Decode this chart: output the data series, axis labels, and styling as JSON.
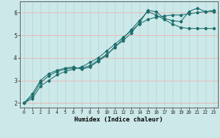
{
  "xlabel": "Humidex (Indice chaleur)",
  "bg_color": "#cce8e8",
  "line_color": "#1e6e6e",
  "grid_h_color": "#e8b8b8",
  "grid_v_color": "#b0d4d4",
  "xlim": [
    -0.5,
    23.5
  ],
  "ylim": [
    1.8,
    6.5
  ],
  "xticks": [
    0,
    1,
    2,
    3,
    4,
    5,
    6,
    7,
    8,
    9,
    10,
    11,
    12,
    13,
    14,
    15,
    16,
    17,
    18,
    19,
    20,
    21,
    22,
    23
  ],
  "yticks": [
    2,
    3,
    4,
    5,
    6
  ],
  "line1_x": [
    0,
    1,
    2,
    3,
    4,
    5,
    6,
    7,
    8,
    9,
    10,
    11,
    12,
    13,
    14,
    15,
    16,
    17,
    18,
    19,
    20,
    21,
    22,
    23
  ],
  "line1_y": [
    2.0,
    2.4,
    3.0,
    3.3,
    3.45,
    3.55,
    3.6,
    3.5,
    3.6,
    3.85,
    4.1,
    4.5,
    4.75,
    5.1,
    5.55,
    6.1,
    6.05,
    5.75,
    5.65,
    5.6,
    6.05,
    6.2,
    6.05,
    6.05
  ],
  "line2_x": [
    0,
    1,
    2,
    3,
    4,
    5,
    6,
    7,
    8,
    9,
    10,
    11,
    12,
    13,
    14,
    15,
    16,
    17,
    18,
    19,
    20,
    21,
    22,
    23
  ],
  "line2_y": [
    2.0,
    2.3,
    2.9,
    3.2,
    3.4,
    3.5,
    3.55,
    3.55,
    3.65,
    3.9,
    4.15,
    4.45,
    4.85,
    5.25,
    5.65,
    6.05,
    5.9,
    5.7,
    5.5,
    5.35,
    5.3,
    5.3,
    5.3,
    5.3
  ],
  "line3_x": [
    0,
    1,
    2,
    3,
    4,
    5,
    6,
    7,
    8,
    9,
    10,
    11,
    12,
    13,
    14,
    15,
    16,
    17,
    18,
    19,
    20,
    21,
    22,
    23
  ],
  "line3_y": [
    2.0,
    2.2,
    2.75,
    3.0,
    3.25,
    3.4,
    3.5,
    3.6,
    3.8,
    4.0,
    4.3,
    4.6,
    4.9,
    5.2,
    5.5,
    5.7,
    5.8,
    5.85,
    5.9,
    5.9,
    5.95,
    6.0,
    6.05,
    6.1
  ]
}
